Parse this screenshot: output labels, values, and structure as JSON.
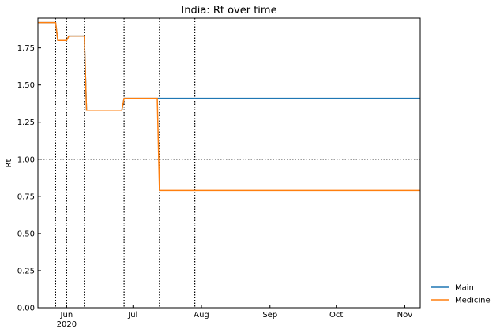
{
  "chart_data": {
    "type": "line",
    "title": "India: Rt over time",
    "xlabel": "",
    "ylabel": "Rt",
    "xlim": [
      "2020-05-19",
      "2020-11-08"
    ],
    "ylim": [
      0.0,
      1.95
    ],
    "x_ticks": [
      {
        "date": "2020-06-01",
        "label": "Jun",
        "sublabel": "2020"
      },
      {
        "date": "2020-07-01",
        "label": "Jul",
        "sublabel": ""
      },
      {
        "date": "2020-08-01",
        "label": "Aug",
        "sublabel": ""
      },
      {
        "date": "2020-09-01",
        "label": "Sep",
        "sublabel": ""
      },
      {
        "date": "2020-10-01",
        "label": "Oct",
        "sublabel": ""
      },
      {
        "date": "2020-11-01",
        "label": "Nov",
        "sublabel": ""
      }
    ],
    "y_ticks": [
      "0.00",
      "0.25",
      "0.50",
      "0.75",
      "1.00",
      "1.25",
      "1.50",
      "1.75"
    ],
    "reference_line_y": 1.0,
    "intervention_dates": [
      "2020-05-27",
      "2020-06-01",
      "2020-06-09",
      "2020-06-27",
      "2020-07-13",
      "2020-07-29"
    ],
    "legend_position": "outside-lower-right",
    "grid": false,
    "series": [
      {
        "name": "Main",
        "color": "#1f77b4",
        "points": [
          [
            "2020-05-19",
            1.92
          ],
          [
            "2020-05-27",
            1.92
          ],
          [
            "2020-05-28",
            1.8
          ],
          [
            "2020-06-01",
            1.8
          ],
          [
            "2020-06-02",
            1.83
          ],
          [
            "2020-06-09",
            1.83
          ],
          [
            "2020-06-10",
            1.33
          ],
          [
            "2020-06-26",
            1.33
          ],
          [
            "2020-06-27",
            1.41
          ],
          [
            "2020-11-08",
            1.41
          ]
        ]
      },
      {
        "name": "Medicine",
        "color": "#ff7f0e",
        "points": [
          [
            "2020-05-19",
            1.92
          ],
          [
            "2020-05-27",
            1.92
          ],
          [
            "2020-05-28",
            1.8
          ],
          [
            "2020-06-01",
            1.8
          ],
          [
            "2020-06-02",
            1.83
          ],
          [
            "2020-06-09",
            1.83
          ],
          [
            "2020-06-10",
            1.33
          ],
          [
            "2020-06-26",
            1.33
          ],
          [
            "2020-06-27",
            1.41
          ],
          [
            "2020-07-12",
            1.41
          ],
          [
            "2020-07-13",
            0.79
          ],
          [
            "2020-11-08",
            0.79
          ]
        ]
      }
    ]
  }
}
